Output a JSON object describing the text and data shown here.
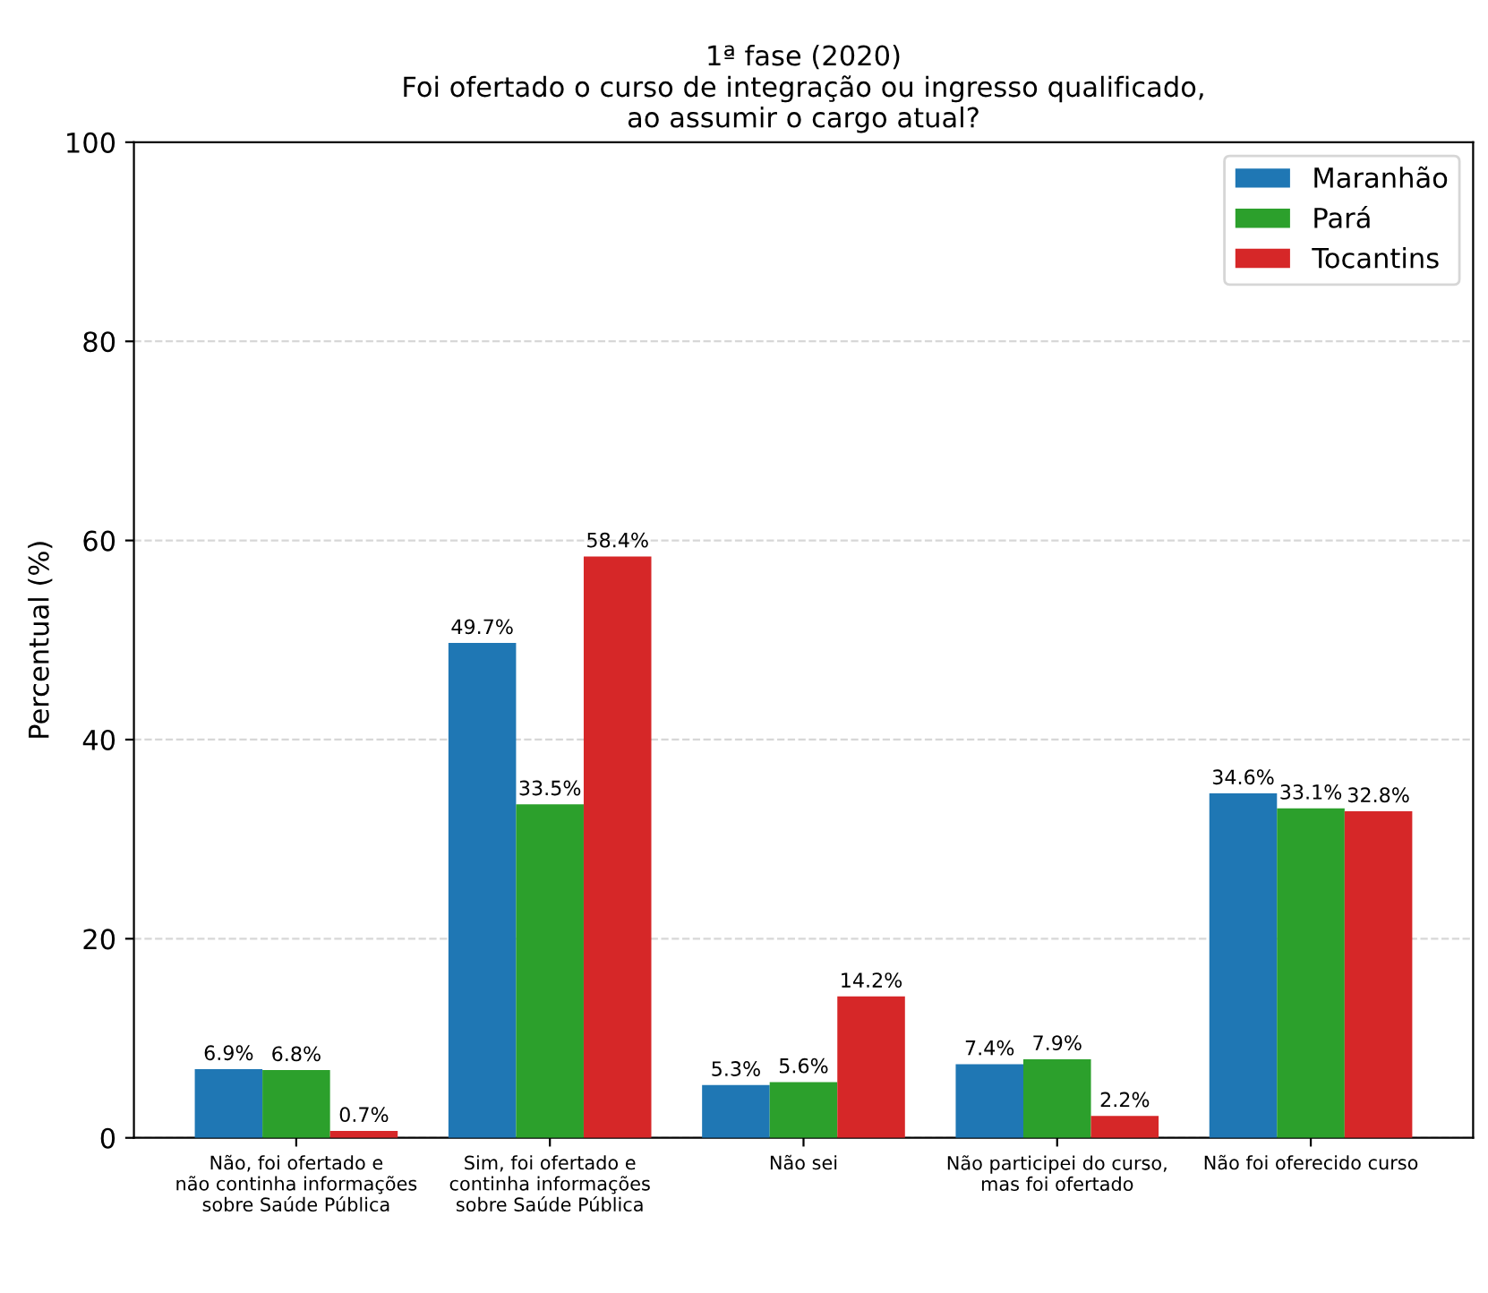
{
  "chart_data": {
    "type": "bar",
    "title": "1ª fase (2020)\nFoi ofertado o curso de integração ou ingresso qualificado,\nao assumir o cargo atual?",
    "ylabel": "Percentual (%)",
    "categories": [
      "Não, foi ofertado e\nnão continha informações\nsobre Saúde Pública",
      "Sim, foi ofertado e\ncontinha informações\nsobre Saúde Pública",
      "Não sei",
      "Não participei do curso,\nmas foi ofertado",
      "Não foi oferecido curso"
    ],
    "series": [
      {
        "name": "Maranhão",
        "color": "#1f77b4",
        "values": [
          6.9,
          49.7,
          5.3,
          7.4,
          34.6
        ]
      },
      {
        "name": "Pará",
        "color": "#2ca02c",
        "values": [
          6.8,
          33.5,
          5.6,
          7.9,
          33.1
        ]
      },
      {
        "name": "Tocantins",
        "color": "#d62728",
        "values": [
          0.7,
          58.4,
          14.2,
          2.2,
          32.8
        ]
      }
    ],
    "value_labels": [
      [
        "6.9%",
        "49.7%",
        "5.3%",
        "7.4%",
        "34.6%"
      ],
      [
        "6.8%",
        "33.5%",
        "5.6%",
        "7.9%",
        "33.1%"
      ],
      [
        "0.7%",
        "58.4%",
        "14.2%",
        "2.2%",
        "32.8%"
      ]
    ],
    "ylim": [
      0,
      100
    ],
    "yticks": [
      0,
      20,
      40,
      60,
      80,
      100
    ],
    "grid": "y",
    "legend": "top right"
  }
}
